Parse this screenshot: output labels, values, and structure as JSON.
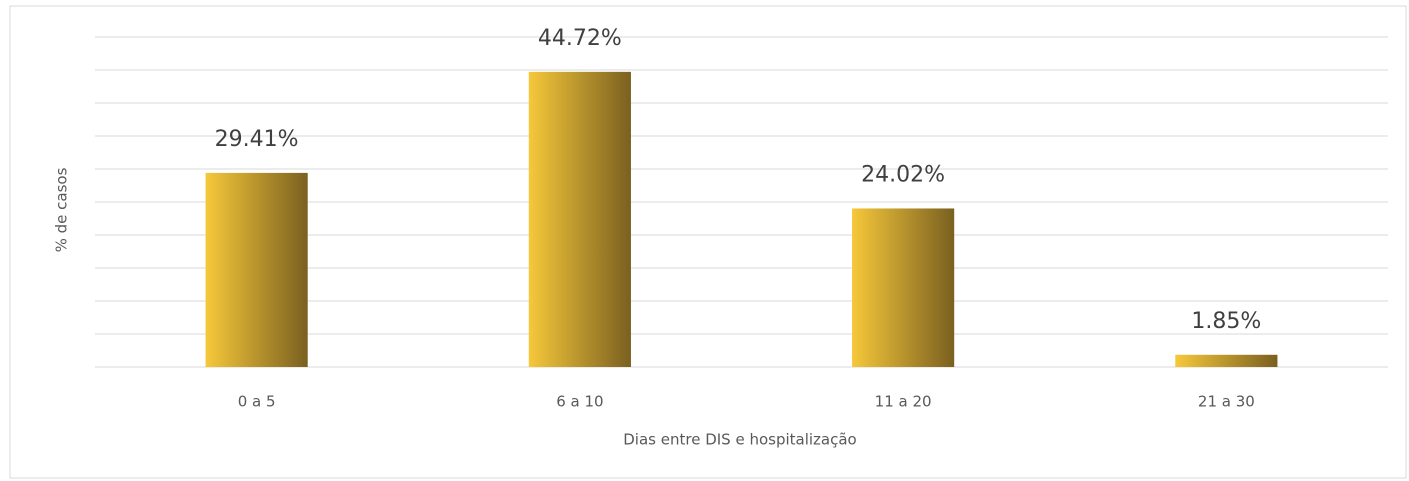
{
  "chart_data": {
    "type": "bar",
    "x_label": "Dias entre DIS e hospitalização",
    "y_label": "% de casos",
    "categories": [
      "0 a 5",
      "6 a 10",
      "11 a 20",
      "21 a 30"
    ],
    "values": [
      29.41,
      44.72,
      24.02,
      1.85
    ],
    "value_labels": [
      "29.41%",
      "44.72%",
      "24.02%",
      "1.85%"
    ],
    "color": "#f6c83a",
    "color_end": "#7a6020",
    "ylim": [
      0,
      50
    ],
    "yticks": [
      0,
      5,
      10,
      15,
      20,
      25,
      30,
      35,
      40,
      45,
      50
    ],
    "grid": true
  }
}
